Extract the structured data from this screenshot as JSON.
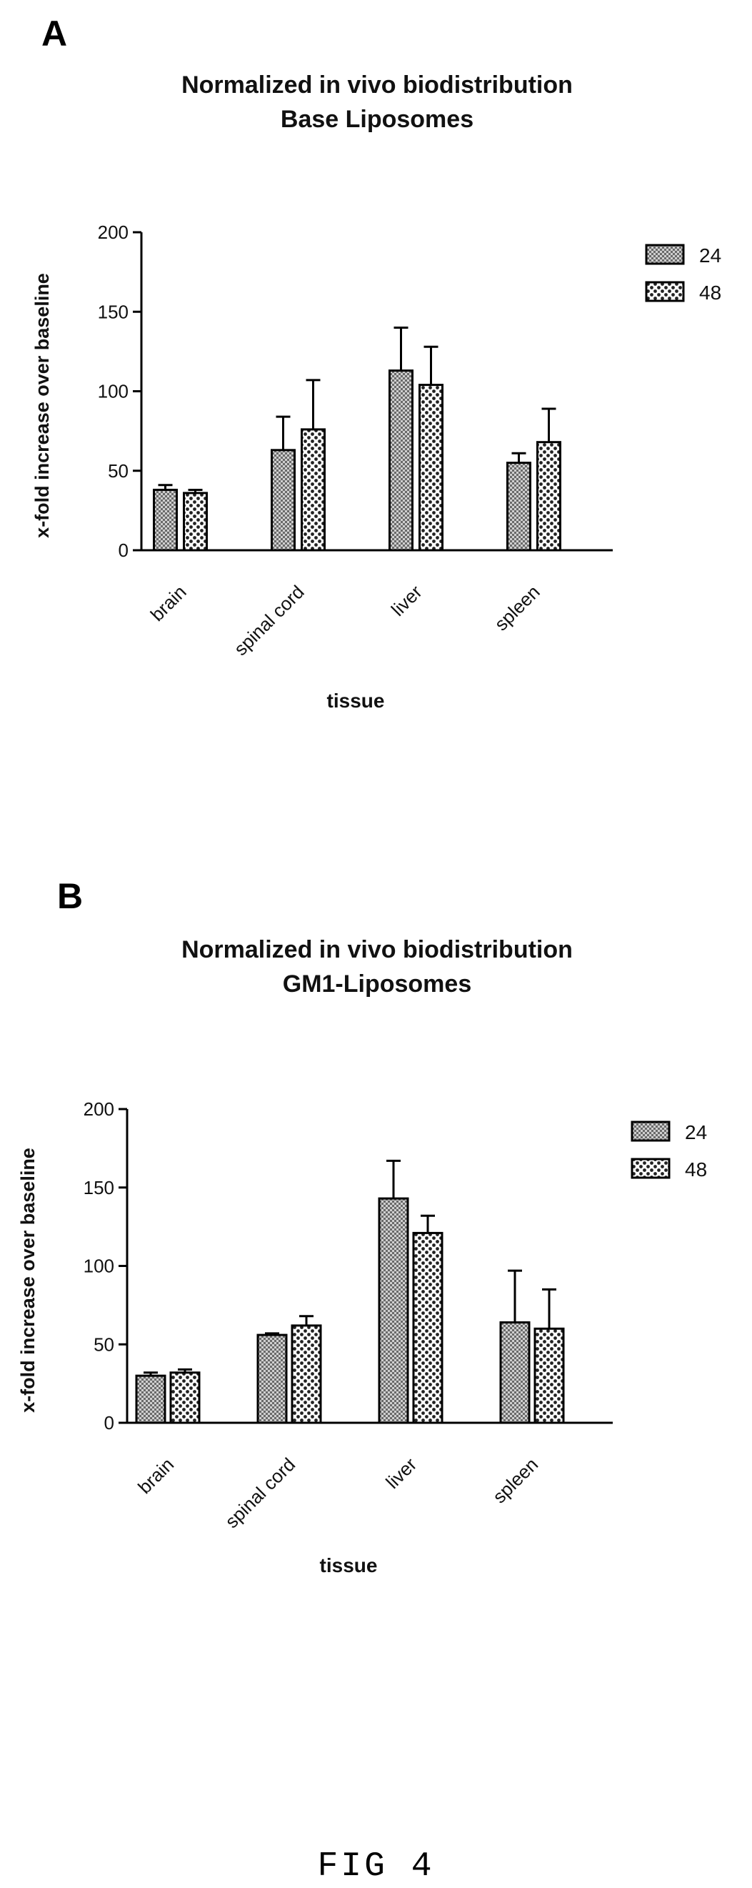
{
  "figure_caption": "FIG 4",
  "panels": [
    {
      "letter": "A"
    },
    {
      "letter": "B"
    }
  ],
  "chart_data": [
    {
      "type": "bar",
      "title": "Normalized in vivo biodistribution",
      "subtitle": "Base Liposomes",
      "xlabel": "tissue",
      "ylabel": "x-fold increase over baseline",
      "ylim": [
        0,
        200
      ],
      "yticks": [
        "0",
        "50",
        "100",
        "150",
        "200"
      ],
      "categories": [
        "brain",
        "spinal cord",
        "liver",
        "spleen"
      ],
      "legend_position": "top-right",
      "series": [
        {
          "name": "24",
          "pattern": "dense-check",
          "values": [
            38,
            63,
            113,
            55
          ],
          "errors": [
            3,
            21,
            27,
            6
          ]
        },
        {
          "name": "48",
          "pattern": "dots",
          "values": [
            36,
            76,
            104,
            68
          ],
          "errors": [
            2,
            31,
            24,
            21
          ]
        }
      ]
    },
    {
      "type": "bar",
      "title": "Normalized in vivo biodistribution",
      "subtitle": "GM1-Liposomes",
      "xlabel": "tissue",
      "ylabel": "x-fold increase over baseline",
      "ylim": [
        0,
        200
      ],
      "yticks": [
        "0",
        "50",
        "100",
        "150",
        "200"
      ],
      "categories": [
        "brain",
        "spinal cord",
        "liver",
        "spleen"
      ],
      "legend_position": "top-right",
      "series": [
        {
          "name": "24",
          "pattern": "dense-check",
          "values": [
            30,
            56,
            143,
            64
          ],
          "errors": [
            2,
            1,
            24,
            33
          ]
        },
        {
          "name": "48",
          "pattern": "dots",
          "values": [
            32,
            62,
            121,
            60
          ],
          "errors": [
            2,
            6,
            11,
            25
          ]
        }
      ]
    }
  ]
}
